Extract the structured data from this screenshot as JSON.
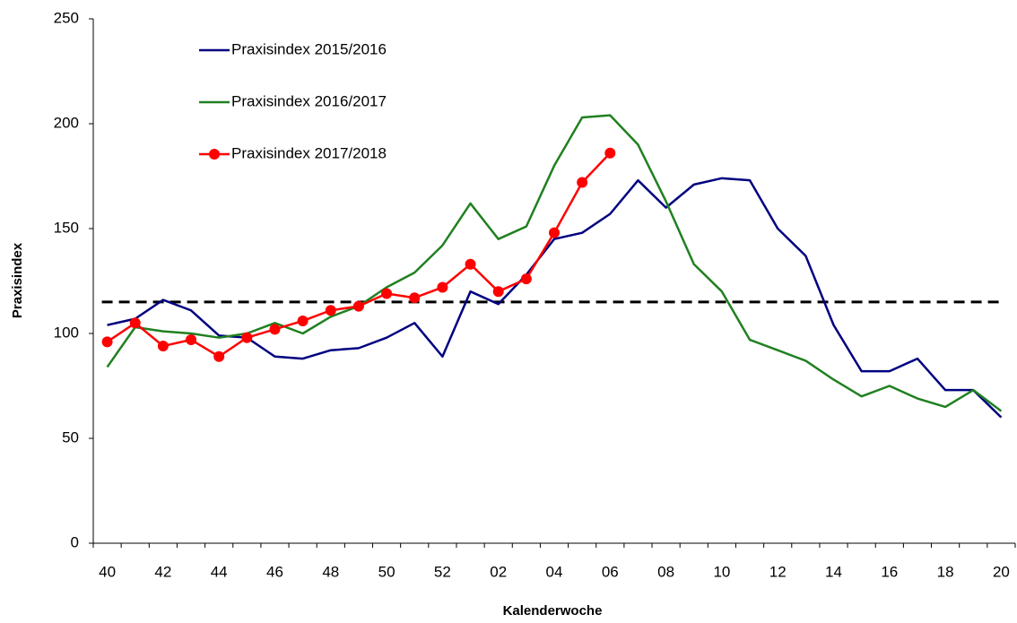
{
  "chart_data": {
    "type": "line",
    "y_label": "Praxisindex",
    "x_label": "Kalenderwoche",
    "categories": [
      "40",
      null,
      "42",
      null,
      "44",
      null,
      "46",
      null,
      "48",
      null,
      "50",
      null,
      "52",
      null,
      "02",
      null,
      "04",
      null,
      "06",
      null,
      "08",
      null,
      "10",
      null,
      "12",
      null,
      "14",
      null,
      "16",
      null,
      "18",
      null,
      "20"
    ],
    "series": [
      {
        "name": "Praxisindex 2015/2016",
        "color": "#000080",
        "marker": false,
        "values": [
          104,
          107,
          116,
          111,
          99,
          98,
          89,
          88,
          92,
          93,
          98,
          105,
          89,
          120,
          114,
          128,
          145,
          148,
          157,
          173,
          160,
          171,
          174,
          173,
          150,
          137,
          104,
          82,
          82,
          88,
          73,
          73,
          60
        ]
      },
      {
        "name": "Praxisindex 2016/2017",
        "color": "#208020",
        "marker": false,
        "values": [
          84,
          103,
          101,
          100,
          98,
          100,
          105,
          100,
          108,
          113,
          122,
          129,
          142,
          162,
          145,
          151,
          180,
          203,
          204,
          190,
          163,
          133,
          120,
          97,
          92,
          87,
          78,
          70,
          75,
          69,
          65,
          73,
          63
        ]
      },
      {
        "name": "Praxisindex 2017/2018",
        "color": "#ff0000",
        "marker": true,
        "values": [
          96,
          105,
          94,
          97,
          89,
          98,
          102,
          106,
          111,
          113,
          119,
          117,
          122,
          133,
          120,
          126,
          148,
          172,
          186,
          null,
          null,
          null,
          null,
          null,
          null,
          null,
          null,
          null,
          null,
          null,
          null,
          null,
          null
        ]
      }
    ],
    "threshold": 115,
    "ylim": [
      0,
      250
    ],
    "yticks": [
      0,
      50,
      100,
      150,
      200,
      250
    ],
    "grid": false
  }
}
